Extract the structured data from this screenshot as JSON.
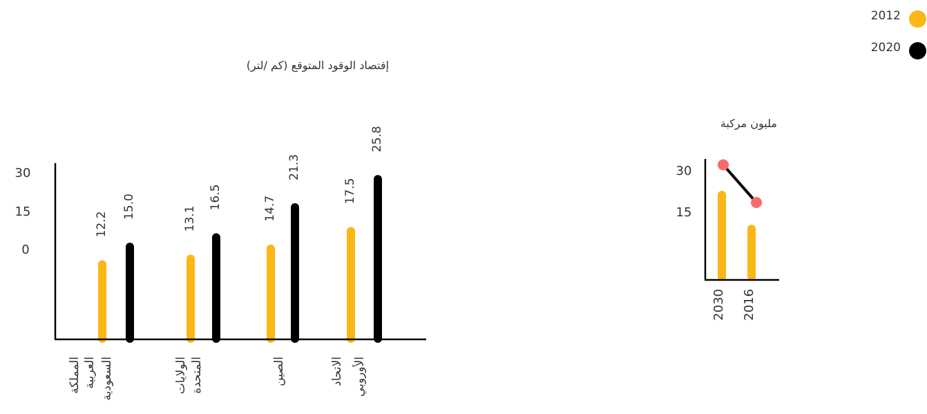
{
  "legend": {
    "items": [
      {
        "label": "2012",
        "color": "#FBB716"
      },
      {
        "label": "2020",
        "color": "#000000"
      }
    ]
  },
  "colors": {
    "y2012": "#FBB716",
    "y2020": "#000000",
    "axis": "#000000",
    "marker": "#F96B6B"
  },
  "chart_data": [
    {
      "type": "bar",
      "title": "إقتصاد الوقود المتوقع (كم /لتر)",
      "categories": [
        "المملكة العربية السعودية",
        "الولايات المتحدة",
        "الصين",
        "الاتحاد الأوروبي"
      ],
      "category_lines": [
        [
          "المملكة",
          "العربية",
          "السعودية"
        ],
        [
          "الولايات",
          "المتحدة"
        ],
        [
          "الصين"
        ],
        [
          "الاتحاد",
          "الأوروبي"
        ]
      ],
      "series": [
        {
          "name": "2012",
          "values": [
            12.2,
            13.1,
            14.7,
            17.5
          ]
        },
        {
          "name": "2020",
          "values": [
            15.0,
            16.5,
            21.3,
            25.8
          ]
        }
      ],
      "value_labels": [
        [
          "12.2",
          "13.1",
          "14.7",
          "17.5"
        ],
        [
          "15.0",
          "16.5",
          "21.3",
          "25.8"
        ]
      ],
      "yticks": [
        "30",
        "15",
        "0"
      ],
      "legend": "top-right",
      "grid": false
    },
    {
      "type": "bar",
      "title": "مليون مركبة",
      "categories": [
        "2030",
        "2016"
      ],
      "values": [
        22,
        13
      ],
      "line_values": [
        30,
        20
      ],
      "yticks": [
        "30",
        "15"
      ],
      "ylim": [
        0,
        33
      ],
      "grid": false
    }
  ]
}
